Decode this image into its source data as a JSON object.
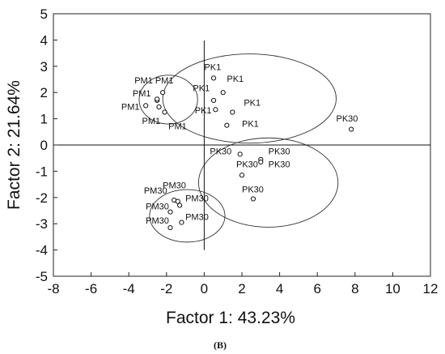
{
  "chart_data": {
    "type": "scatter",
    "title": "",
    "xlabel": "Factor 1: 43.23%",
    "ylabel": "Factor 2: 21.64%",
    "xlim": [
      -8,
      12
    ],
    "ylim": [
      -5,
      5
    ],
    "xticks": [
      -8,
      -6,
      -4,
      -2,
      0,
      2,
      4,
      6,
      8,
      10,
      12
    ],
    "yticks": [
      -5,
      -4,
      -3,
      -2,
      -1,
      0,
      1,
      2,
      3,
      4,
      5
    ],
    "grid": false,
    "reference_lines": {
      "x": 0,
      "y": 0
    },
    "points": [
      {
        "label": "PM1",
        "x": -3.1,
        "y": 1.5
      },
      {
        "label": "PM1",
        "x": -2.5,
        "y": 1.7
      },
      {
        "label": "PM1",
        "x": -2.5,
        "y": 1.75
      },
      {
        "label": "PM1",
        "x": -2.2,
        "y": 2.0
      },
      {
        "label": "PM1",
        "x": -2.4,
        "y": 1.45
      },
      {
        "label": "PM1",
        "x": -2.1,
        "y": 1.25
      },
      {
        "label": "PK1",
        "x": 0.5,
        "y": 2.55
      },
      {
        "label": "PK1",
        "x": 1.0,
        "y": 2.0
      },
      {
        "label": "PK1",
        "x": 0.5,
        "y": 1.7
      },
      {
        "label": "PK1",
        "x": 0.6,
        "y": 1.35
      },
      {
        "label": "PK1",
        "x": 1.5,
        "y": 1.25
      },
      {
        "label": "PK1",
        "x": 1.2,
        "y": 0.75
      },
      {
        "label": "PK30",
        "x": 7.8,
        "y": 0.6
      },
      {
        "label": "PK30",
        "x": 1.9,
        "y": -0.35
      },
      {
        "label": "PK30",
        "x": 3.0,
        "y": -0.55
      },
      {
        "label": "PK30",
        "x": 3.0,
        "y": -0.65
      },
      {
        "label": "PK30",
        "x": 2.0,
        "y": -1.15
      },
      {
        "label": "PK30",
        "x": 2.6,
        "y": -2.05
      },
      {
        "label": "PM30",
        "x": -1.6,
        "y": -2.1
      },
      {
        "label": "PM30",
        "x": -1.4,
        "y": -2.15
      },
      {
        "label": "PM30",
        "x": -1.3,
        "y": -2.3
      },
      {
        "label": "PM30",
        "x": -1.8,
        "y": -2.55
      },
      {
        "label": "PM30",
        "x": -1.2,
        "y": -2.95
      },
      {
        "label": "PM30",
        "x": -1.8,
        "y": -3.15
      }
    ],
    "labels": [
      {
        "text": "PM1",
        "x": -3.7,
        "y": 2.35
      },
      {
        "text": "PM1",
        "x": -2.6,
        "y": 2.35
      },
      {
        "text": "PM1",
        "x": -3.8,
        "y": 1.85
      },
      {
        "text": "PM1",
        "x": -4.4,
        "y": 1.35
      },
      {
        "text": "PM1",
        "x": -3.3,
        "y": 0.8
      },
      {
        "text": "PM1",
        "x": -1.9,
        "y": 0.6
      },
      {
        "text": "PK1",
        "x": 0.0,
        "y": 2.85
      },
      {
        "text": "PK1",
        "x": 1.2,
        "y": 2.4
      },
      {
        "text": "PK1",
        "x": -0.6,
        "y": 2.05
      },
      {
        "text": "PK1",
        "x": 2.1,
        "y": 1.5
      },
      {
        "text": "PK1",
        "x": -0.5,
        "y": 1.2
      },
      {
        "text": "PK1",
        "x": 2.0,
        "y": 0.7
      },
      {
        "text": "PK30",
        "x": 7.0,
        "y": 0.9
      },
      {
        "text": "PK30",
        "x": 0.3,
        "y": -0.35
      },
      {
        "text": "PK30",
        "x": 3.4,
        "y": -0.35
      },
      {
        "text": "PK30",
        "x": 3.4,
        "y": -0.85
      },
      {
        "text": "PK30",
        "x": 1.7,
        "y": -0.85
      },
      {
        "text": "PK30",
        "x": 2.0,
        "y": -1.8
      },
      {
        "text": "PM30",
        "x": -2.2,
        "y": -1.65
      },
      {
        "text": "PM30",
        "x": -3.2,
        "y": -1.85
      },
      {
        "text": "PM30",
        "x": -1.0,
        "y": -2.15
      },
      {
        "text": "PM30",
        "x": -3.1,
        "y": -2.45
      },
      {
        "text": "PM30",
        "x": -1.0,
        "y": -2.85
      },
      {
        "text": "PM30",
        "x": -3.1,
        "y": -3.0
      }
    ],
    "ellipses": [
      {
        "group": "PM1",
        "cx": -1.9,
        "cy": 1.73,
        "rx": 1.55,
        "ry": 0.93
      },
      {
        "group": "PK1",
        "cx": 2.4,
        "cy": 1.77,
        "rx": 4.6,
        "ry": 1.7
      },
      {
        "group": "PK30",
        "cx": 3.4,
        "cy": -1.43,
        "rx": 3.7,
        "ry": 1.7
      },
      {
        "group": "PM30",
        "cx": -0.9,
        "cy": -2.7,
        "rx": 2.0,
        "ry": 1.0
      }
    ]
  },
  "caption": "(B)"
}
